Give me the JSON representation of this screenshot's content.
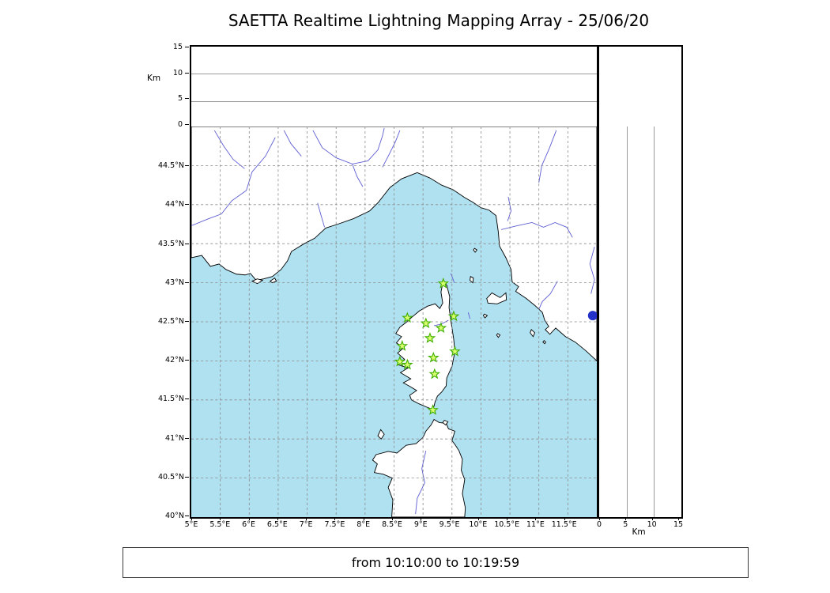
{
  "title": "SAETTA Realtime Lightning Mapping Array - 25/06/20",
  "footer": {
    "time_range": "from 10:10:00 to 10:19:59"
  },
  "altitude_axis": {
    "label": "Km",
    "max": 15,
    "ticks": [
      {
        "v": 0,
        "label": "0"
      },
      {
        "v": 5,
        "label": "5"
      },
      {
        "v": 10,
        "label": "10"
      },
      {
        "v": 15,
        "label": "15"
      }
    ],
    "gridlines": [
      5,
      10
    ]
  },
  "map": {
    "extent": {
      "lon_min": 5,
      "lon_max": 12,
      "lat_min": 40,
      "lat_max": 45
    },
    "sea_color": "#b0e1f0",
    "land_color": "#ffffff",
    "coast_color": "#000000",
    "river_color": "#5f5fd3",
    "grid_color": "#8a8a8a",
    "lon_ticks": [
      {
        "v": 5,
        "label": "5°E"
      },
      {
        "v": 5.5,
        "label": "5.5°E"
      },
      {
        "v": 6,
        "label": "6°E"
      },
      {
        "v": 6.5,
        "label": "6.5°E"
      },
      {
        "v": 7,
        "label": "7°E"
      },
      {
        "v": 7.5,
        "label": "7.5°E"
      },
      {
        "v": 8,
        "label": "8°E"
      },
      {
        "v": 8.5,
        "label": "8.5°E"
      },
      {
        "v": 9,
        "label": "9°E"
      },
      {
        "v": 9.5,
        "label": "9.5°E"
      },
      {
        "v": 10,
        "label": "10°E"
      },
      {
        "v": 10.5,
        "label": "10.5°E"
      },
      {
        "v": 11,
        "label": "11°E"
      },
      {
        "v": 11.5,
        "label": "11.5°E"
      }
    ],
    "lat_ticks": [
      {
        "v": 44.5,
        "label": "44.5°N"
      },
      {
        "v": 44,
        "label": "44°N"
      },
      {
        "v": 43.5,
        "label": "43.5°N"
      },
      {
        "v": 43,
        "label": "43°N"
      },
      {
        "v": 42.5,
        "label": "42.5°N"
      },
      {
        "v": 42,
        "label": "42°N"
      },
      {
        "v": 41.5,
        "label": "41.5°N"
      },
      {
        "v": 41,
        "label": "41°N"
      },
      {
        "v": 40.5,
        "label": "40.5°N"
      },
      {
        "v": 40,
        "label": "40°N"
      }
    ],
    "station_style": {
      "fill": "#d9ff6e",
      "stroke": "#3fae00"
    },
    "stations": [
      {
        "lon": 9.35,
        "lat": 42.99
      },
      {
        "lon": 8.73,
        "lat": 42.55
      },
      {
        "lon": 9.05,
        "lat": 42.48
      },
      {
        "lon": 9.53,
        "lat": 42.57
      },
      {
        "lon": 9.31,
        "lat": 42.42
      },
      {
        "lon": 9.12,
        "lat": 42.29
      },
      {
        "lon": 8.64,
        "lat": 42.19
      },
      {
        "lon": 9.55,
        "lat": 42.12
      },
      {
        "lon": 8.6,
        "lat": 41.99
      },
      {
        "lon": 8.73,
        "lat": 41.95
      },
      {
        "lon": 9.18,
        "lat": 42.04
      },
      {
        "lon": 9.2,
        "lat": 41.83
      },
      {
        "lon": 9.17,
        "lat": 41.37
      }
    ],
    "lake_marker": {
      "lon": 11.93,
      "lat": 42.58,
      "color": "#2431c8"
    },
    "coastlines": [
      {
        "name": "continent",
        "points": [
          [
            5.0,
            43.32
          ],
          [
            5.18,
            43.35
          ],
          [
            5.33,
            43.21
          ],
          [
            5.48,
            43.24
          ],
          [
            5.6,
            43.17
          ],
          [
            5.78,
            43.11
          ],
          [
            5.93,
            43.1
          ],
          [
            6.02,
            43.12
          ],
          [
            6.12,
            43.03
          ],
          [
            6.25,
            43.05
          ],
          [
            6.4,
            43.08
          ],
          [
            6.55,
            43.17
          ],
          [
            6.66,
            43.28
          ],
          [
            6.73,
            43.4
          ],
          [
            6.95,
            43.5
          ],
          [
            7.13,
            43.57
          ],
          [
            7.32,
            43.7
          ],
          [
            7.53,
            43.75
          ],
          [
            7.8,
            43.82
          ],
          [
            8.08,
            43.92
          ],
          [
            8.23,
            44.03
          ],
          [
            8.43,
            44.22
          ],
          [
            8.63,
            44.33
          ],
          [
            8.9,
            44.41
          ],
          [
            9.12,
            44.34
          ],
          [
            9.32,
            44.25
          ],
          [
            9.52,
            44.19
          ],
          [
            9.72,
            44.09
          ],
          [
            9.86,
            44.03
          ],
          [
            10.0,
            43.96
          ],
          [
            10.14,
            43.93
          ],
          [
            10.26,
            43.86
          ],
          [
            10.3,
            43.65
          ],
          [
            10.32,
            43.47
          ],
          [
            10.43,
            43.32
          ],
          [
            10.52,
            43.17
          ],
          [
            10.54,
            43.01
          ],
          [
            10.65,
            42.95
          ],
          [
            10.6,
            42.89
          ],
          [
            10.78,
            42.8
          ],
          [
            10.93,
            42.71
          ],
          [
            11.06,
            42.62
          ],
          [
            11.1,
            42.52
          ],
          [
            11.17,
            42.44
          ],
          [
            11.11,
            42.4
          ],
          [
            11.19,
            42.34
          ],
          [
            11.29,
            42.42
          ],
          [
            11.46,
            42.31
          ],
          [
            11.63,
            42.24
          ],
          [
            11.81,
            42.13
          ],
          [
            12.0,
            42.0
          ],
          [
            12.0,
            45.0
          ],
          [
            5.0,
            45.0
          ]
        ]
      },
      {
        "name": "corsica",
        "points": [
          [
            9.345,
            43.01
          ],
          [
            9.41,
            42.97
          ],
          [
            9.46,
            42.82
          ],
          [
            9.45,
            42.68
          ],
          [
            9.48,
            42.52
          ],
          [
            9.53,
            42.28
          ],
          [
            9.55,
            42.12
          ],
          [
            9.5,
            41.93
          ],
          [
            9.41,
            41.78
          ],
          [
            9.4,
            41.68
          ],
          [
            9.32,
            41.6
          ],
          [
            9.25,
            41.55
          ],
          [
            9.21,
            41.48
          ],
          [
            9.19,
            41.42
          ],
          [
            9.16,
            41.38
          ],
          [
            9.06,
            41.41
          ],
          [
            8.93,
            41.45
          ],
          [
            8.8,
            41.5
          ],
          [
            8.77,
            41.56
          ],
          [
            8.89,
            41.62
          ],
          [
            8.78,
            41.67
          ],
          [
            8.66,
            41.72
          ],
          [
            8.79,
            41.77
          ],
          [
            8.61,
            41.85
          ],
          [
            8.74,
            41.91
          ],
          [
            8.57,
            41.95
          ],
          [
            8.68,
            42.02
          ],
          [
            8.56,
            42.1
          ],
          [
            8.67,
            42.17
          ],
          [
            8.54,
            42.23
          ],
          [
            8.63,
            42.31
          ],
          [
            8.53,
            42.35
          ],
          [
            8.6,
            42.43
          ],
          [
            8.72,
            42.5
          ],
          [
            8.81,
            42.56
          ],
          [
            8.94,
            42.64
          ],
          [
            9.08,
            42.7
          ],
          [
            9.21,
            42.73
          ],
          [
            9.29,
            42.67
          ],
          [
            9.34,
            42.74
          ],
          [
            9.31,
            42.88
          ]
        ]
      },
      {
        "name": "sardinia",
        "points": [
          [
            8.46,
            40.0
          ],
          [
            8.48,
            40.22
          ],
          [
            8.4,
            40.38
          ],
          [
            8.47,
            40.5
          ],
          [
            8.31,
            40.55
          ],
          [
            8.16,
            40.57
          ],
          [
            8.21,
            40.68
          ],
          [
            8.13,
            40.73
          ],
          [
            8.19,
            40.8
          ],
          [
            8.4,
            40.84
          ],
          [
            8.55,
            40.82
          ],
          [
            8.71,
            40.92
          ],
          [
            8.88,
            40.94
          ],
          [
            9.0,
            41.02
          ],
          [
            9.05,
            41.1
          ],
          [
            9.14,
            41.18
          ],
          [
            9.19,
            41.25
          ],
          [
            9.28,
            41.21
          ],
          [
            9.4,
            41.2
          ],
          [
            9.44,
            41.13
          ],
          [
            9.55,
            41.1
          ],
          [
            9.5,
            40.98
          ],
          [
            9.56,
            40.92
          ],
          [
            9.62,
            40.85
          ],
          [
            9.68,
            40.74
          ],
          [
            9.66,
            40.6
          ],
          [
            9.72,
            40.48
          ],
          [
            9.68,
            40.3
          ],
          [
            9.73,
            40.12
          ],
          [
            9.72,
            40.0
          ]
        ]
      },
      {
        "name": "asinara",
        "points": [
          [
            8.27,
            41.12
          ],
          [
            8.33,
            41.06
          ],
          [
            8.28,
            41.0
          ],
          [
            8.22,
            41.04
          ]
        ]
      },
      {
        "name": "maddalena",
        "points": [
          [
            9.37,
            41.24
          ],
          [
            9.43,
            41.22
          ],
          [
            9.39,
            41.18
          ],
          [
            9.34,
            41.21
          ]
        ]
      },
      {
        "name": "elba",
        "points": [
          [
            10.1,
            42.8
          ],
          [
            10.19,
            42.87
          ],
          [
            10.33,
            42.81
          ],
          [
            10.43,
            42.87
          ],
          [
            10.44,
            42.78
          ],
          [
            10.28,
            42.73
          ],
          [
            10.12,
            42.74
          ]
        ]
      },
      {
        "name": "capraia",
        "points": [
          [
            9.82,
            43.08
          ],
          [
            9.87,
            43.06
          ],
          [
            9.86,
            43.0
          ],
          [
            9.81,
            43.03
          ]
        ]
      },
      {
        "name": "gorgona",
        "points": [
          [
            9.89,
            43.44
          ],
          [
            9.93,
            43.42
          ],
          [
            9.9,
            43.39
          ],
          [
            9.87,
            43.42
          ]
        ]
      },
      {
        "name": "pianosa",
        "points": [
          [
            10.06,
            42.6
          ],
          [
            10.11,
            42.58
          ],
          [
            10.07,
            42.55
          ],
          [
            10.04,
            42.58
          ]
        ]
      },
      {
        "name": "montecristo",
        "points": [
          [
            10.29,
            42.35
          ],
          [
            10.33,
            42.33
          ],
          [
            10.3,
            42.3
          ],
          [
            10.27,
            42.33
          ]
        ]
      },
      {
        "name": "giglio",
        "points": [
          [
            10.87,
            42.4
          ],
          [
            10.93,
            42.36
          ],
          [
            10.9,
            42.31
          ],
          [
            10.85,
            42.36
          ]
        ]
      },
      {
        "name": "giannutri",
        "points": [
          [
            11.09,
            42.26
          ],
          [
            11.12,
            42.24
          ],
          [
            11.1,
            42.22
          ],
          [
            11.07,
            42.24
          ]
        ]
      },
      {
        "name": "porquerolles",
        "points": [
          [
            6.05,
            43.02
          ],
          [
            6.14,
            43.05
          ],
          [
            6.23,
            43.03
          ],
          [
            6.14,
            42.99
          ]
        ]
      },
      {
        "name": "ile-du-levant",
        "points": [
          [
            6.36,
            43.02
          ],
          [
            6.44,
            43.06
          ],
          [
            6.47,
            43.02
          ],
          [
            6.4,
            43.0
          ]
        ]
      }
    ],
    "rivers": [
      {
        "name": "durance",
        "points": [
          [
            6.45,
            44.86
          ],
          [
            6.28,
            44.62
          ],
          [
            6.05,
            44.42
          ],
          [
            5.95,
            44.18
          ],
          [
            5.7,
            44.05
          ],
          [
            5.52,
            43.88
          ],
          [
            5.3,
            43.82
          ],
          [
            5.0,
            43.73
          ]
        ]
      },
      {
        "name": "buech",
        "points": [
          [
            5.4,
            44.95
          ],
          [
            5.56,
            44.75
          ],
          [
            5.72,
            44.58
          ],
          [
            5.92,
            44.46
          ]
        ]
      },
      {
        "name": "ubaye",
        "points": [
          [
            6.6,
            44.95
          ],
          [
            6.72,
            44.78
          ],
          [
            6.9,
            44.62
          ]
        ]
      },
      {
        "name": "var",
        "points": [
          [
            7.18,
            44.02
          ],
          [
            7.24,
            43.86
          ],
          [
            7.3,
            43.71
          ]
        ]
      },
      {
        "name": "po-tanaro",
        "points": [
          [
            7.1,
            44.95
          ],
          [
            7.26,
            44.73
          ],
          [
            7.5,
            44.6
          ],
          [
            7.78,
            44.52
          ],
          [
            8.05,
            44.56
          ],
          [
            8.22,
            44.7
          ],
          [
            8.3,
            44.88
          ],
          [
            8.33,
            44.98
          ]
        ]
      },
      {
        "name": "tanaro-branch",
        "points": [
          [
            7.78,
            44.52
          ],
          [
            7.86,
            44.36
          ],
          [
            7.96,
            44.23
          ]
        ]
      },
      {
        "name": "bormida",
        "points": [
          [
            8.6,
            44.95
          ],
          [
            8.52,
            44.8
          ],
          [
            8.4,
            44.62
          ],
          [
            8.3,
            44.48
          ]
        ]
      },
      {
        "name": "reno",
        "points": [
          [
            11.3,
            44.95
          ],
          [
            11.18,
            44.72
          ],
          [
            11.05,
            44.5
          ],
          [
            11.0,
            44.28
          ]
        ]
      },
      {
        "name": "arno",
        "points": [
          [
            10.35,
            43.68
          ],
          [
            10.62,
            43.73
          ],
          [
            10.88,
            43.77
          ],
          [
            11.08,
            43.71
          ],
          [
            11.28,
            43.77
          ],
          [
            11.48,
            43.71
          ],
          [
            11.58,
            43.58
          ]
        ]
      },
      {
        "name": "serchio",
        "points": [
          [
            10.47,
            44.1
          ],
          [
            10.52,
            43.92
          ],
          [
            10.46,
            43.79
          ]
        ]
      },
      {
        "name": "ombrone",
        "points": [
          [
            11.32,
            43.02
          ],
          [
            11.2,
            42.86
          ],
          [
            11.06,
            42.76
          ],
          [
            11.0,
            42.66
          ]
        ]
      },
      {
        "name": "tiber-upper",
        "points": [
          [
            11.96,
            43.46
          ],
          [
            11.88,
            43.24
          ],
          [
            11.96,
            43.04
          ],
          [
            11.9,
            42.86
          ]
        ]
      },
      {
        "name": "tirso",
        "points": [
          [
            9.05,
            40.85
          ],
          [
            8.98,
            40.62
          ],
          [
            9.03,
            40.44
          ],
          [
            8.9,
            40.24
          ],
          [
            8.87,
            40.04
          ]
        ]
      },
      {
        "name": "golo",
        "points": [
          [
            9.44,
            42.52
          ],
          [
            9.31,
            42.47
          ],
          [
            9.19,
            42.45
          ]
        ]
      },
      {
        "name": "offshore-line-1",
        "points": [
          [
            9.48,
            43.12
          ],
          [
            9.54,
            43.0
          ]
        ]
      },
      {
        "name": "offshore-line-2",
        "points": [
          [
            9.78,
            42.62
          ],
          [
            9.81,
            42.54
          ]
        ]
      }
    ]
  }
}
